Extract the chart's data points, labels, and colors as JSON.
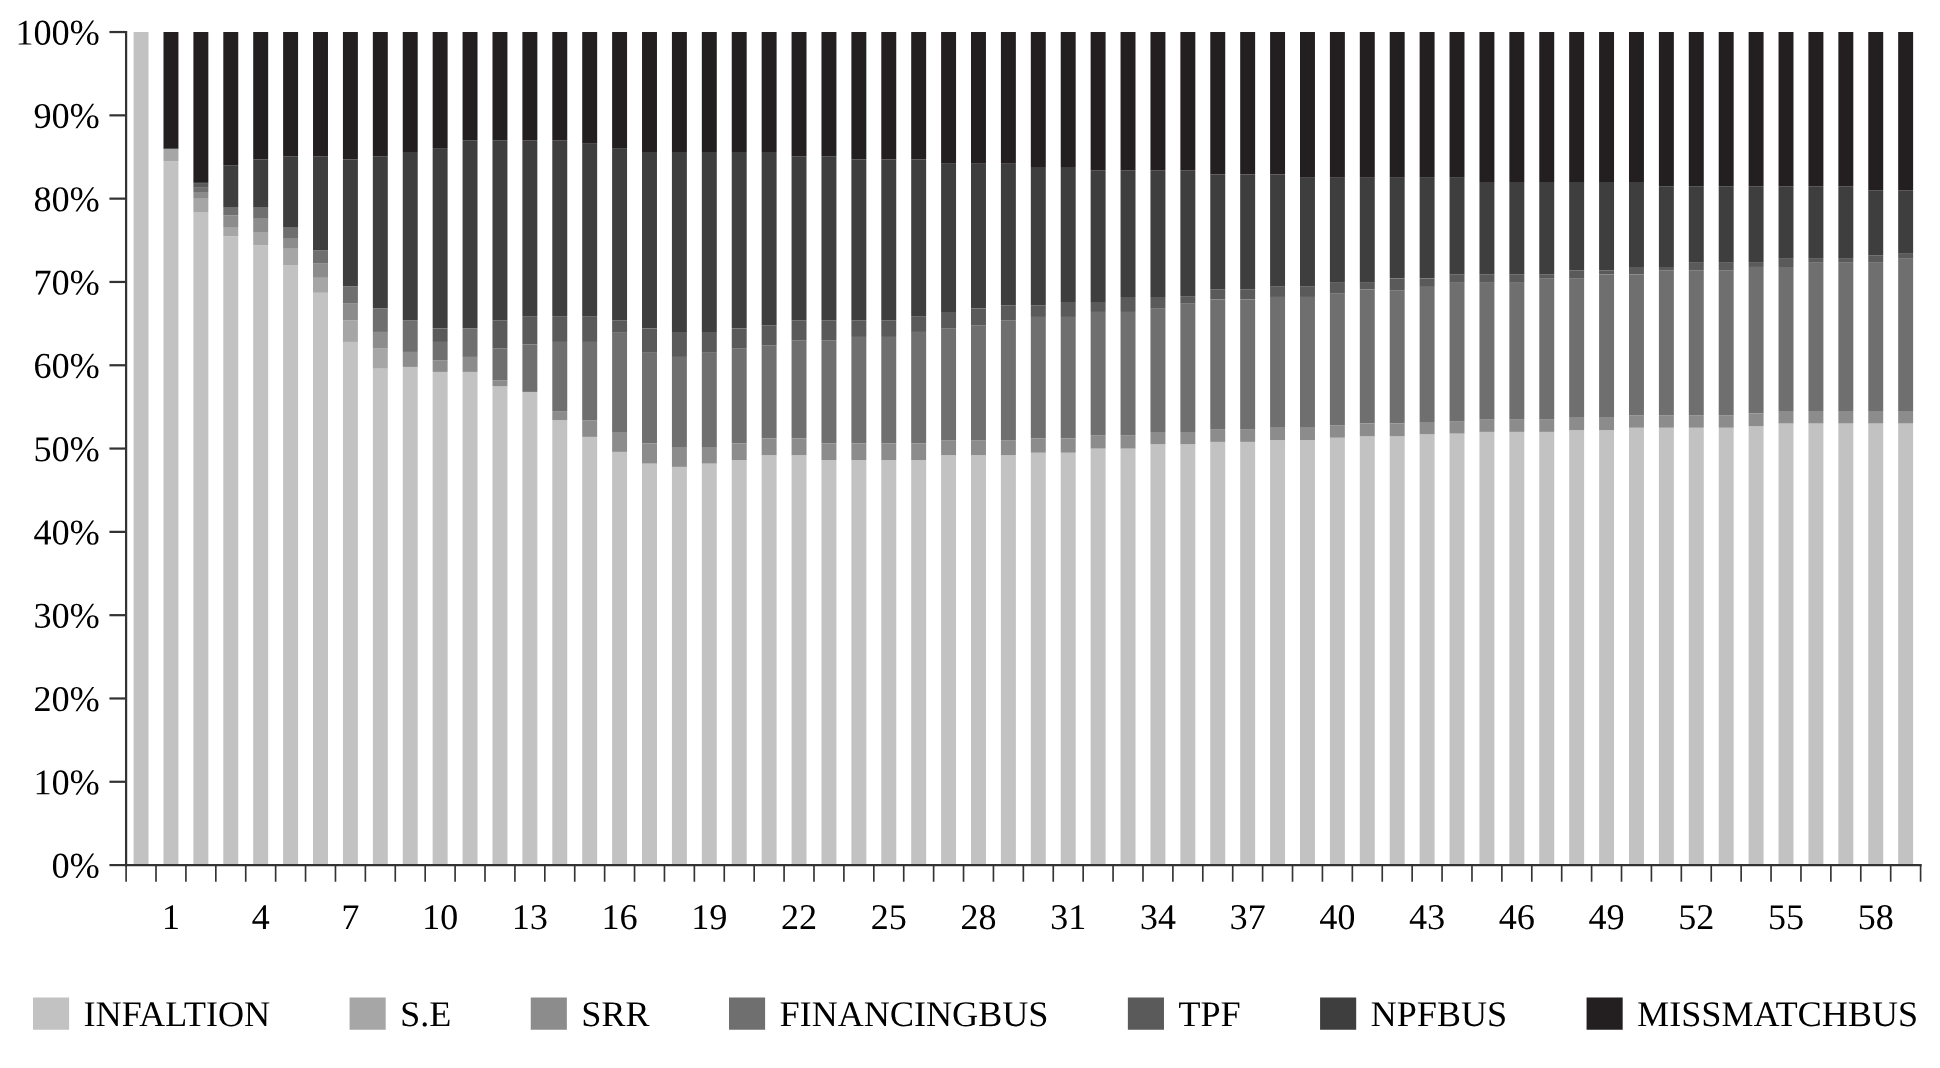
{
  "chart_data": {
    "type": "bar",
    "stacked": true,
    "categories": [
      null,
      "1",
      null,
      null,
      "4",
      null,
      null,
      "7",
      null,
      null,
      "10",
      null,
      null,
      "13",
      null,
      null,
      "16",
      null,
      null,
      "19",
      null,
      null,
      "22",
      null,
      null,
      "25",
      null,
      null,
      "28",
      null,
      null,
      "31",
      null,
      null,
      "34",
      null,
      null,
      "37",
      null,
      null,
      "40",
      null,
      null,
      "43",
      null,
      null,
      "46",
      null,
      null,
      "49",
      null,
      null,
      "52",
      null,
      null,
      "55",
      null,
      null,
      "58",
      null
    ],
    "series": [
      {
        "name": "INFALTION",
        "color": "#c2c2c2",
        "values": [
          100,
          84.5,
          78.4,
          75.5,
          74.4,
          72,
          68.7,
          62.8,
          59.6,
          59.8,
          59.2,
          59.2,
          57.5,
          56.8,
          53.4,
          51.4,
          49.6,
          48.2,
          47.8,
          48.2,
          48.6,
          49.2,
          49.2,
          48.6,
          48.6,
          48.6,
          48.6,
          49.2,
          49.2,
          49.2,
          49.5,
          49.5,
          50,
          50,
          50.5,
          50.5,
          50.8,
          50.8,
          51,
          51,
          51.3,
          51.5,
          51.5,
          51.7,
          51.8,
          52,
          52,
          52,
          52.2,
          52.2,
          52.5,
          52.5,
          52.5,
          52.5,
          52.7,
          53,
          53,
          53,
          53,
          53
        ]
      },
      {
        "name": "S.E",
        "color": "#a6a6a6",
        "values": [
          0,
          1.5,
          1.6,
          1,
          1.6,
          2,
          1.8,
          2.6,
          2.4,
          0,
          0,
          0,
          0,
          0,
          0,
          0,
          0,
          0,
          0,
          0,
          0,
          0,
          0,
          0,
          0,
          0,
          0,
          0,
          0,
          0,
          0,
          0,
          0,
          0,
          0,
          0,
          0,
          0,
          0,
          0,
          0,
          0,
          0,
          0,
          0,
          0,
          0,
          0,
          0,
          0,
          0,
          0,
          0,
          0,
          0,
          0,
          0,
          0,
          0,
          0
        ]
      },
      {
        "name": "SRR",
        "color": "#8c8c8c",
        "values": [
          0,
          0,
          0.8,
          1.5,
          1.6,
          1.2,
          1.7,
          2,
          2,
          1.8,
          1.4,
          1.8,
          0.7,
          0,
          1.1,
          2,
          2.4,
          2.4,
          2.4,
          2,
          2,
          2,
          2,
          2,
          2,
          2,
          2,
          1.8,
          1.8,
          1.8,
          1.7,
          1.7,
          1.6,
          1.6,
          1.5,
          1.5,
          1.5,
          1.5,
          1.5,
          1.5,
          1.5,
          1.5,
          1.5,
          1.5,
          1.5,
          1.5,
          1.5,
          1.5,
          1.5,
          1.5,
          1.5,
          1.5,
          1.5,
          1.5,
          1.5,
          1.5,
          1.5,
          1.5,
          1.5,
          1.5
        ]
      },
      {
        "name": "FINANCINGBUS",
        "color": "#6f6f6f",
        "values": [
          0,
          0,
          0.5,
          1,
          1.4,
          1.4,
          1.6,
          2.1,
          2.8,
          3.8,
          2.2,
          3.4,
          3.8,
          5.7,
          8.3,
          9.4,
          11.9,
          10.9,
          10.8,
          11.3,
          11.4,
          11.2,
          11.8,
          12.4,
          12.8,
          12.8,
          13.4,
          13.4,
          13.8,
          14.4,
          14.6,
          14.6,
          14.8,
          14.8,
          14.8,
          15.4,
          15.6,
          15.6,
          15.7,
          15.7,
          15.8,
          16.1,
          16,
          16.3,
          16.6,
          16.4,
          16.4,
          16.9,
          16.7,
          17.2,
          16.9,
          17.4,
          17.4,
          17.4,
          17.6,
          17.3,
          17.8,
          17.8,
          17.8,
          18.3
        ]
      },
      {
        "name": "TPF",
        "color": "#5a5a5a",
        "values": [
          0,
          0,
          0.5,
          0,
          0,
          0,
          0,
          0,
          0,
          0,
          1.6,
          0,
          3.4,
          3.4,
          3.1,
          3.1,
          1.5,
          2.9,
          3,
          2.5,
          2.4,
          2.4,
          2.4,
          2.4,
          2,
          2,
          1.9,
          2,
          2,
          1.8,
          1.4,
          1.8,
          1.2,
          1.8,
          1.4,
          0.9,
          1.2,
          1.2,
          1.3,
          1.3,
          1.3,
          0.8,
          1.4,
          0.9,
          1,
          1,
          1,
          0.5,
          1,
          0.5,
          0.9,
          0.4,
          0.9,
          0.9,
          0.5,
          1,
          0.5,
          0.5,
          0.9,
          0.6
        ]
      },
      {
        "name": "NPFBUS",
        "color": "#3e3e3e",
        "values": [
          0,
          0,
          0.2,
          5,
          5.7,
          8.5,
          11.3,
          15.2,
          18.3,
          20.2,
          21.6,
          22.6,
          21.6,
          21.1,
          21.1,
          20.7,
          20.6,
          21.2,
          21.6,
          21.6,
          21.2,
          20.8,
          19.7,
          19.7,
          19.3,
          19.3,
          18.8,
          17.8,
          17.4,
          17,
          16.6,
          16.2,
          15.8,
          15.2,
          15.2,
          15.1,
          13.8,
          13.8,
          13.4,
          13,
          12.6,
          12.6,
          12.1,
          12.1,
          11.6,
          11.1,
          11.1,
          11.1,
          10.6,
          10.6,
          10.2,
          9.7,
          9.2,
          9.2,
          9.2,
          8.7,
          8.7,
          8.7,
          7.8,
          7.6
        ]
      },
      {
        "name": "MISSMATCHBUS",
        "color": "#231f20",
        "values": [
          0,
          14,
          18,
          16,
          15.3,
          14.9,
          14.9,
          15.3,
          14.9,
          14.4,
          14,
          13,
          13,
          13,
          13,
          13.4,
          14,
          14.4,
          14.4,
          14.4,
          14.4,
          14.4,
          14.9,
          14.9,
          15.3,
          15.3,
          15.3,
          15.8,
          15.8,
          15.8,
          16.2,
          16.2,
          16.6,
          16.6,
          16.6,
          16.6,
          17.1,
          17.1,
          17.1,
          17.5,
          17.5,
          17.5,
          17.5,
          17.5,
          17.5,
          18,
          18,
          18,
          18,
          18,
          18,
          18.5,
          18.5,
          18.5,
          18.5,
          18.5,
          18.5,
          18.5,
          19,
          19
        ]
      }
    ],
    "ylim": [
      0,
      100
    ],
    "yticks": [
      {
        "value": 0,
        "label": "0%"
      },
      {
        "value": 10,
        "label": "10%"
      },
      {
        "value": 20,
        "label": "20%"
      },
      {
        "value": 30,
        "label": "30%"
      },
      {
        "value": 40,
        "label": "40%"
      },
      {
        "value": 50,
        "label": "50%"
      },
      {
        "value": 60,
        "label": "60%"
      },
      {
        "value": 70,
        "label": "70%"
      },
      {
        "value": 80,
        "label": "80%"
      },
      {
        "value": 90,
        "label": "90%"
      },
      {
        "value": 100,
        "label": "100%"
      }
    ],
    "grid": false,
    "legend": "bottom"
  }
}
